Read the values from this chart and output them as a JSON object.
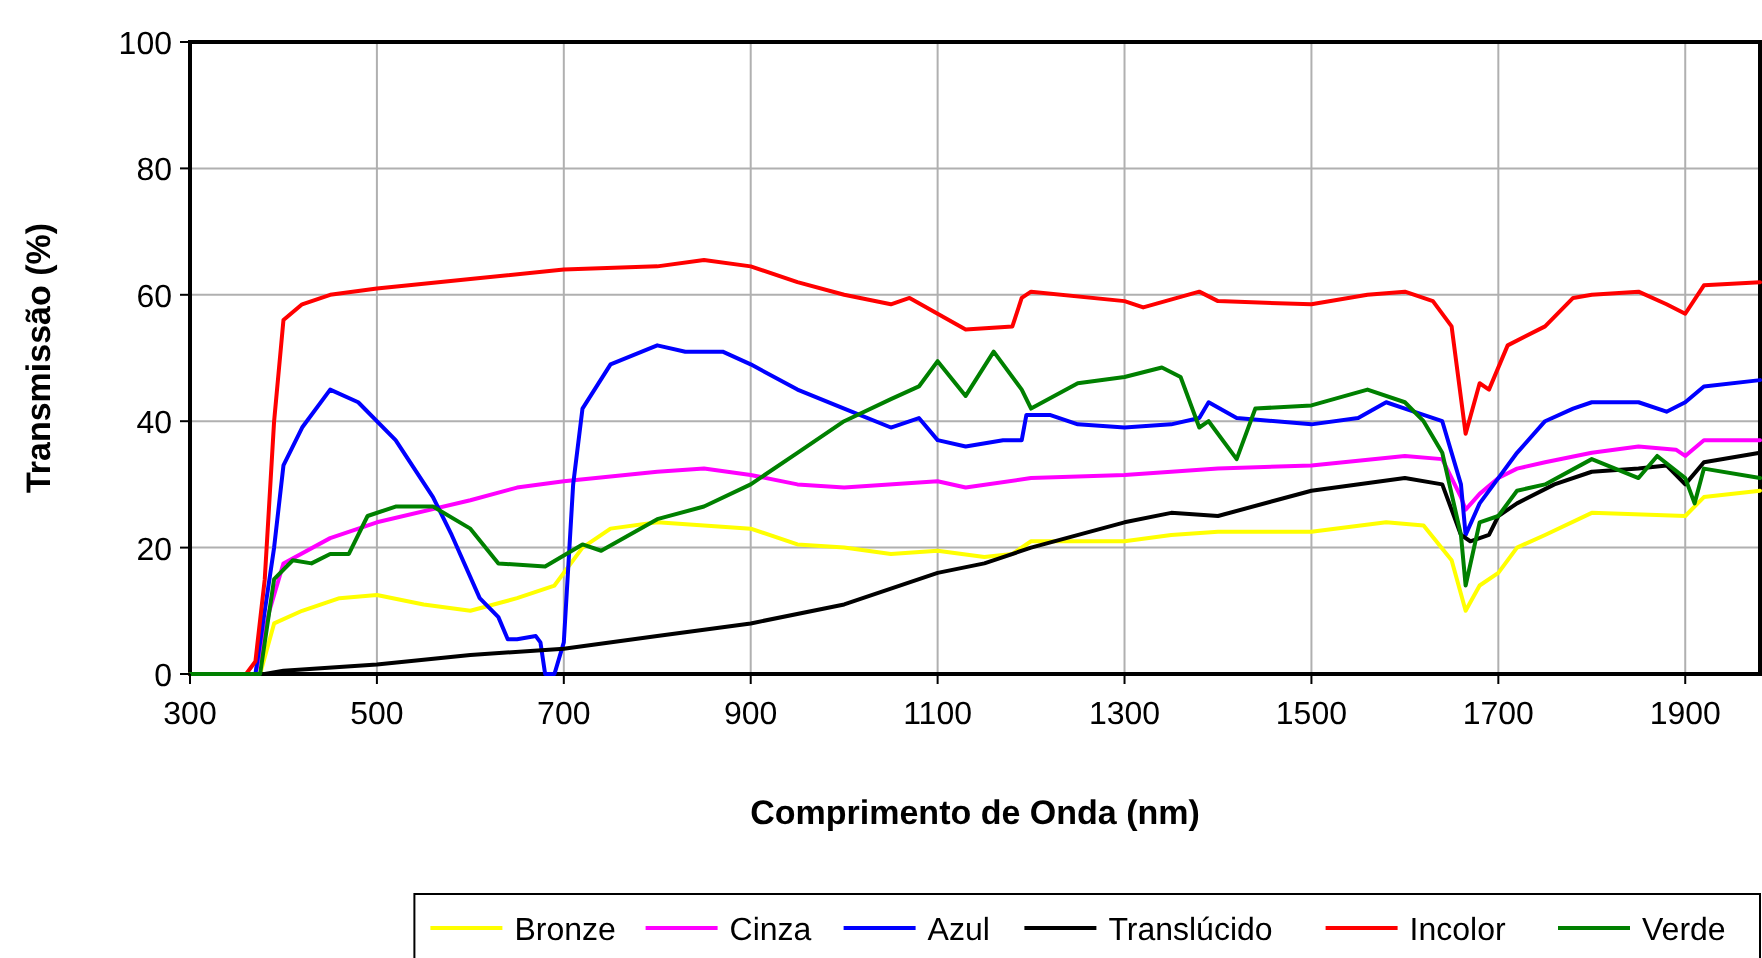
{
  "chart_data": {
    "type": "line",
    "xlabel": "Comprimento de Onda (nm)",
    "ylabel": "Transmissão (%)",
    "xlim": [
      300,
      1980
    ],
    "xticks": [
      300,
      500,
      700,
      900,
      1100,
      1300,
      1500,
      1700,
      1900
    ],
    "ylim": [
      0,
      100
    ],
    "yticks": [
      0,
      20,
      40,
      60,
      80,
      100
    ],
    "grid": true,
    "legend": "bottom",
    "marker": "none",
    "line_style": "solid",
    "series": [
      {
        "name": "Bronze",
        "color": "#ffff00",
        "x": [
          300,
          375,
          390,
          420,
          460,
          500,
          550,
          600,
          650,
          690,
          720,
          750,
          800,
          850,
          900,
          950,
          1000,
          1050,
          1100,
          1150,
          1180,
          1200,
          1300,
          1350,
          1400,
          1500,
          1580,
          1620,
          1650,
          1665,
          1680,
          1700,
          1720,
          1750,
          1800,
          1900,
          1920,
          1980
        ],
        "values": [
          0,
          0,
          8,
          10,
          12,
          12.5,
          11,
          10,
          12,
          14,
          20,
          23,
          24,
          23.5,
          23,
          20.5,
          20,
          19,
          19.5,
          18.5,
          19,
          21,
          21,
          22,
          22.5,
          22.5,
          24,
          23.5,
          18,
          10,
          14,
          16,
          20,
          22,
          25.5,
          25,
          28,
          29
        ]
      },
      {
        "name": "Cinza",
        "color": "#ff00ff",
        "x": [
          300,
          370,
          385,
          400,
          450,
          500,
          600,
          650,
          700,
          800,
          850,
          900,
          950,
          1000,
          1100,
          1130,
          1200,
          1300,
          1400,
          1500,
          1600,
          1640,
          1660,
          1665,
          1680,
          1700,
          1720,
          1750,
          1800,
          1850,
          1890,
          1900,
          1920,
          1980
        ],
        "values": [
          0,
          0,
          10,
          17.5,
          21.5,
          24,
          27.5,
          29.5,
          30.5,
          32,
          32.5,
          31.5,
          30,
          29.5,
          30.5,
          29.5,
          31,
          31.5,
          32.5,
          33,
          34.5,
          34,
          28,
          26,
          28.5,
          31,
          32.5,
          33.5,
          35,
          36,
          35.5,
          34.5,
          37,
          37
        ]
      },
      {
        "name": "Azul",
        "color": "#0000ff",
        "x": [
          300,
          370,
          390,
          400,
          420,
          450,
          480,
          520,
          560,
          580,
          610,
          630,
          640,
          650,
          670,
          675,
          680,
          690,
          700,
          710,
          720,
          750,
          800,
          830,
          870,
          900,
          950,
          1000,
          1050,
          1080,
          1100,
          1130,
          1170,
          1190,
          1195,
          1220,
          1250,
          1300,
          1350,
          1380,
          1390,
          1420,
          1500,
          1550,
          1580,
          1600,
          1640,
          1660,
          1665,
          1680,
          1700,
          1720,
          1750,
          1780,
          1800,
          1850,
          1880,
          1900,
          1920,
          1980
        ],
        "values": [
          0,
          0,
          20,
          33,
          39,
          45,
          43,
          37,
          28,
          22,
          12,
          9,
          5.5,
          5.5,
          6,
          5,
          0,
          0,
          5,
          30,
          42,
          49,
          52,
          51,
          51,
          49,
          45,
          42,
          39,
          40.5,
          37,
          36,
          37,
          37,
          41,
          41,
          39.5,
          39,
          39.5,
          40.5,
          43,
          40.5,
          39.5,
          40.5,
          43,
          42,
          40,
          30,
          22,
          27,
          31,
          35,
          40,
          42,
          43,
          43,
          41.5,
          43,
          45.5,
          46.5
        ]
      },
      {
        "name": "Translúcido",
        "color": "#000000",
        "x": [
          300,
          380,
          400,
          500,
          600,
          700,
          800,
          900,
          1000,
          1100,
          1150,
          1200,
          1300,
          1350,
          1400,
          1500,
          1600,
          1640,
          1660,
          1670,
          1690,
          1700,
          1720,
          1760,
          1800,
          1850,
          1880,
          1900,
          1920,
          1980
        ],
        "values": [
          0,
          0,
          0.5,
          1.5,
          3,
          4,
          6,
          8,
          11,
          16,
          17.5,
          20,
          24,
          25.5,
          25,
          29,
          31,
          30,
          22,
          21,
          22,
          25,
          27,
          30,
          32,
          32.5,
          33,
          30,
          33.5,
          35
        ]
      },
      {
        "name": "Incolor",
        "color": "#ff0000",
        "x": [
          300,
          360,
          370,
          380,
          390,
          400,
          420,
          450,
          500,
          600,
          700,
          800,
          850,
          900,
          950,
          1000,
          1050,
          1070,
          1100,
          1130,
          1180,
          1190,
          1200,
          1300,
          1320,
          1380,
          1400,
          1500,
          1560,
          1600,
          1630,
          1650,
          1665,
          1680,
          1690,
          1710,
          1750,
          1780,
          1800,
          1850,
          1880,
          1900,
          1920,
          1980
        ],
        "values": [
          0,
          0,
          2,
          15,
          40,
          56,
          58.5,
          60,
          61,
          62.5,
          64,
          64.5,
          65.5,
          64.5,
          62,
          60,
          58.5,
          59.5,
          57,
          54.5,
          55,
          59.5,
          60.5,
          59,
          58,
          60.5,
          59,
          58.5,
          60,
          60.5,
          59,
          55,
          38,
          46,
          45,
          52,
          55,
          59.5,
          60,
          60.5,
          58.5,
          57,
          61.5,
          62
        ]
      },
      {
        "name": "Verde",
        "color": "#008000",
        "x": [
          300,
          375,
          390,
          410,
          430,
          450,
          470,
          490,
          520,
          560,
          600,
          630,
          680,
          720,
          740,
          800,
          850,
          900,
          950,
          1000,
          1050,
          1080,
          1100,
          1130,
          1160,
          1190,
          1200,
          1250,
          1300,
          1340,
          1360,
          1380,
          1390,
          1420,
          1440,
          1500,
          1560,
          1600,
          1620,
          1640,
          1660,
          1665,
          1680,
          1700,
          1720,
          1750,
          1800,
          1850,
          1870,
          1900,
          1910,
          1920,
          1980
        ],
        "values": [
          0,
          0,
          15,
          18,
          17.5,
          19,
          19,
          25,
          26.5,
          26.5,
          23,
          17.5,
          17,
          20.5,
          19.5,
          24.5,
          26.5,
          30,
          35,
          40,
          43.5,
          45.5,
          49.5,
          44,
          51,
          45,
          42,
          46,
          47,
          48.5,
          47,
          39,
          40,
          34,
          42,
          42.5,
          45,
          43,
          40,
          35,
          22,
          14,
          24,
          25,
          29,
          30,
          34,
          31,
          34.5,
          31,
          27,
          32.5,
          31
        ]
      }
    ]
  }
}
